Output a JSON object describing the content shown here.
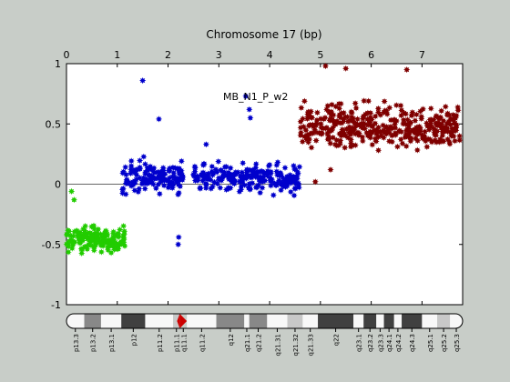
{
  "chart_data": {
    "type": "scatter",
    "title": "Chromosome 17 (bp)",
    "annotation": "MB_N1_P_w2",
    "x_axis": {
      "position": "top",
      "range": [
        0,
        7.8
      ],
      "ticks": [
        0,
        1,
        2,
        3,
        4,
        5,
        6,
        7
      ],
      "tick_labels": [
        "0",
        "1",
        "2",
        "3",
        "4",
        "5",
        "6",
        "7"
      ]
    },
    "y_axis": {
      "range": [
        -1,
        1
      ],
      "ticks": [
        -1,
        -0.5,
        0,
        0.5,
        1
      ],
      "tick_labels": [
        "-1",
        "-0.5",
        "0",
        "0.5",
        "1"
      ]
    },
    "reference_line_y": 0,
    "grid": false,
    "series": [
      {
        "color": "#22cc00",
        "x_range": [
          0,
          1.15
        ],
        "y_mean": -0.46,
        "y_spread": 0.07,
        "count": 160,
        "outliers": [
          {
            "x": 0.1,
            "y": -0.06
          },
          {
            "x": 0.15,
            "y": -0.13
          }
        ]
      },
      {
        "color": "#0000cc",
        "x_range": [
          1.1,
          2.3
        ],
        "y_mean": 0.06,
        "y_spread": 0.09,
        "count": 140,
        "outliers": [
          {
            "x": 1.5,
            "y": 0.86
          },
          {
            "x": 1.82,
            "y": 0.54
          },
          {
            "x": 2.2,
            "y": -0.5
          },
          {
            "x": 2.21,
            "y": -0.44
          }
        ]
      },
      {
        "color": "#0000cc",
        "x_range": [
          2.5,
          4.6
        ],
        "y_mean": 0.05,
        "y_spread": 0.08,
        "count": 230,
        "outliers": [
          {
            "x": 3.53,
            "y": 0.73
          },
          {
            "x": 3.6,
            "y": 0.62
          },
          {
            "x": 3.62,
            "y": 0.55
          },
          {
            "x": 2.75,
            "y": 0.33
          }
        ]
      },
      {
        "color": "#7f0000",
        "x_range": [
          4.6,
          7.75
        ],
        "y_mean": 0.48,
        "y_spread": 0.12,
        "count": 380,
        "outliers": [
          {
            "x": 5.1,
            "y": 0.98
          },
          {
            "x": 5.5,
            "y": 0.96
          },
          {
            "x": 6.7,
            "y": 0.95
          },
          {
            "x": 4.9,
            "y": 0.02
          },
          {
            "x": 5.2,
            "y": 0.12
          }
        ]
      }
    ],
    "ideogram": {
      "bands": [
        {
          "name": "p13.3",
          "start": 0.0,
          "end": 0.35,
          "color": "#f8f8f8"
        },
        {
          "name": "p13.2",
          "start": 0.35,
          "end": 0.68,
          "color": "#888888"
        },
        {
          "name": "p13.1",
          "start": 0.68,
          "end": 1.08,
          "color": "#f8f8f8"
        },
        {
          "name": "p12",
          "start": 1.08,
          "end": 1.55,
          "color": "#404040"
        },
        {
          "name": "p11.2",
          "start": 1.55,
          "end": 2.1,
          "color": "#f8f8f8"
        },
        {
          "name": "p11.1",
          "start": 2.1,
          "end": 2.23,
          "color": "#c8c8c8"
        },
        {
          "name": "q11.1",
          "start": 2.23,
          "end": 2.37,
          "color": "#cc0000"
        },
        {
          "name": "q11.2",
          "start": 2.37,
          "end": 2.95,
          "color": "#f8f8f8"
        },
        {
          "name": "q12",
          "start": 2.95,
          "end": 3.5,
          "color": "#888888"
        },
        {
          "name": "q21.1",
          "start": 3.5,
          "end": 3.6,
          "color": "#f8f8f8"
        },
        {
          "name": "q21.2",
          "start": 3.6,
          "end": 3.95,
          "color": "#888888"
        },
        {
          "name": "q21.31",
          "start": 3.95,
          "end": 4.35,
          "color": "#f8f8f8"
        },
        {
          "name": "q21.32",
          "start": 4.35,
          "end": 4.65,
          "color": "#c8c8c8"
        },
        {
          "name": "q21.33",
          "start": 4.65,
          "end": 4.95,
          "color": "#f8f8f8"
        },
        {
          "name": "q22",
          "start": 4.95,
          "end": 5.65,
          "color": "#404040"
        },
        {
          "name": "q23.1",
          "start": 5.65,
          "end": 5.85,
          "color": "#f8f8f8"
        },
        {
          "name": "q23.2",
          "start": 5.85,
          "end": 6.1,
          "color": "#404040"
        },
        {
          "name": "q23.3",
          "start": 6.1,
          "end": 6.25,
          "color": "#f8f8f8"
        },
        {
          "name": "q24.1",
          "start": 6.25,
          "end": 6.45,
          "color": "#404040"
        },
        {
          "name": "q24.2",
          "start": 6.45,
          "end": 6.6,
          "color": "#f8f8f8"
        },
        {
          "name": "q24.3",
          "start": 6.6,
          "end": 7.0,
          "color": "#404040"
        },
        {
          "name": "q25.1",
          "start": 7.0,
          "end": 7.3,
          "color": "#f8f8f8"
        },
        {
          "name": "q25.2",
          "start": 7.3,
          "end": 7.55,
          "color": "#c8c8c8"
        },
        {
          "name": "q25.3",
          "start": 7.55,
          "end": 7.8,
          "color": "#f8f8f8"
        }
      ]
    }
  }
}
